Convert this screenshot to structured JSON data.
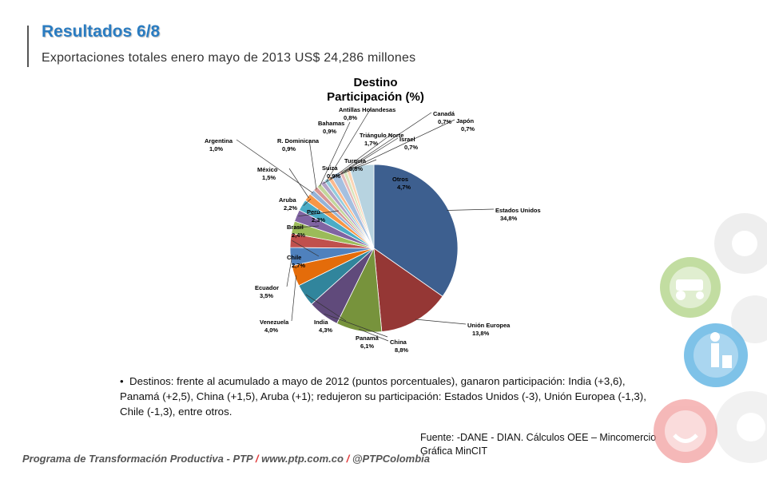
{
  "slide": {
    "title": "Resultados 6/8",
    "subtitle": "Exportaciones totales enero mayo de 2013 US$ 24,286 millones",
    "bullet_marker": "•",
    "bullet_text": "Destinos: frente al acumulado a mayo de 2012 (puntos porcentuales), ganaron participación: India (+3,6), Panamá (+2,5), China (+1,5), Aruba (+1); redujeron su participación: Estados Unidos (-3), Unión Europea (-1,3), Chile (-1,3), entre otros.",
    "source_line1": "Fuente: -DANE - DIAN. Cálculos OEE – Mincomercio",
    "source_line2": "Gráfica MinCIT",
    "footer_program": "Programa de Transformación Productiva - PTP",
    "footer_sep": "/",
    "footer_url": "www.ptp.com.co",
    "footer_handle": "@PTPColombia"
  },
  "chart_data": {
    "type": "pie",
    "title": "Destino",
    "subtitle": "Participación (%)",
    "slices": [
      {
        "name": "Estados Unidos",
        "value": 34.8,
        "label": "34,8%",
        "color": "#3d5f8f"
      },
      {
        "name": "Unión Europea",
        "value": 13.8,
        "label": "13,8%",
        "color": "#953735"
      },
      {
        "name": "China",
        "value": 8.8,
        "label": "8,8%",
        "color": "#77933c"
      },
      {
        "name": "Panamá",
        "value": 6.1,
        "label": "6,1%",
        "color": "#604a7b"
      },
      {
        "name": "India",
        "value": 4.3,
        "label": "4,3%",
        "color": "#31859c"
      },
      {
        "name": "Venezuela",
        "value": 4.0,
        "label": "4,0%",
        "color": "#e46c0a"
      },
      {
        "name": "Ecuador",
        "value": 3.5,
        "label": "3,5%",
        "color": "#4f81bd"
      },
      {
        "name": "Chile",
        "value": 2.7,
        "label": "2,7%",
        "color": "#c0504d"
      },
      {
        "name": "Brasil",
        "value": 2.4,
        "label": "2,4%",
        "color": "#9bbb59"
      },
      {
        "name": "Perú",
        "value": 2.3,
        "label": "2,3%",
        "color": "#8064a2"
      },
      {
        "name": "Aruba",
        "value": 2.2,
        "label": "2,2%",
        "color": "#4bacc6"
      },
      {
        "name": "México",
        "value": 1.5,
        "label": "1,5%",
        "color": "#f79646"
      },
      {
        "name": "Argentina",
        "value": 1.0,
        "label": "1,0%",
        "color": "#95b3d7"
      },
      {
        "name": "R. Dominicana",
        "value": 0.9,
        "label": "0,9%",
        "color": "#d99694"
      },
      {
        "name": "Bahamas",
        "value": 0.9,
        "label": "0,9%",
        "color": "#c3d69b"
      },
      {
        "name": "Suiza",
        "value": 0.9,
        "label": "0,9%",
        "color": "#b3a2c7"
      },
      {
        "name": "Antillas Holandesas",
        "value": 0.8,
        "label": "0,8%",
        "color": "#93cddd"
      },
      {
        "name": "Turquía",
        "value": 0.8,
        "label": "0,8%",
        "color": "#fab98e"
      },
      {
        "name": "Triángulo Norte",
        "value": 1.7,
        "label": "1,7%",
        "color": "#a5c0e0"
      },
      {
        "name": "Canadá",
        "value": 0.7,
        "label": "0,7%",
        "color": "#e6b9b8"
      },
      {
        "name": "Israel",
        "value": 0.7,
        "label": "0,7%",
        "color": "#d7e4bd"
      },
      {
        "name": "Japón",
        "value": 0.7,
        "label": "0,7%",
        "color": "#fcd5b5"
      },
      {
        "name": "Otros",
        "value": 4.7,
        "label": "4,7%",
        "color": "#b7d3e0"
      }
    ]
  }
}
